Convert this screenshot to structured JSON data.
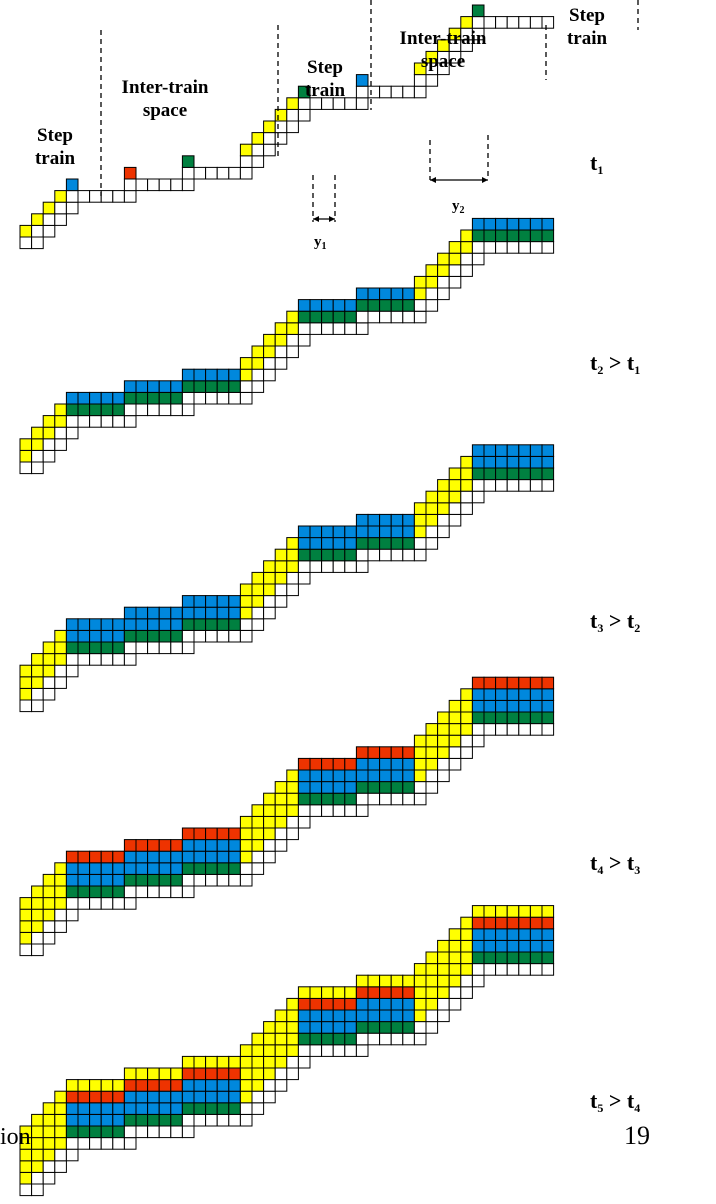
{
  "panel1_labels": {
    "step_train_left": "Step train",
    "inter_train_left": "Inter-train space",
    "step_train_mid": "Step train",
    "inter_train_right": "Inter-train space",
    "step_train_right": "Step train",
    "y1": "y",
    "y1_sub": "1",
    "y2": "y",
    "y2_sub": "2"
  },
  "panels": [
    {
      "time": "t",
      "sub": "1",
      "compare": "",
      "compare_sub": ""
    },
    {
      "time": "t",
      "sub": "2",
      "compare": " > t",
      "compare_sub": "1"
    },
    {
      "time": "t",
      "sub": "3",
      "compare": " > t",
      "compare_sub": "2"
    },
    {
      "time": "t",
      "sub": "4",
      "compare": " > t",
      "compare_sub": "3"
    },
    {
      "time": "t",
      "sub": "5",
      "compare": " > t",
      "compare_sub": "4"
    }
  ],
  "colors": {
    "yellow": "#ffff00",
    "green": "#008040",
    "blue": "#0088dd",
    "red": "#ee3300",
    "white": "#ffffff",
    "line": "#000000"
  },
  "footer": {
    "left_text": "ion",
    "page_number": "19"
  }
}
